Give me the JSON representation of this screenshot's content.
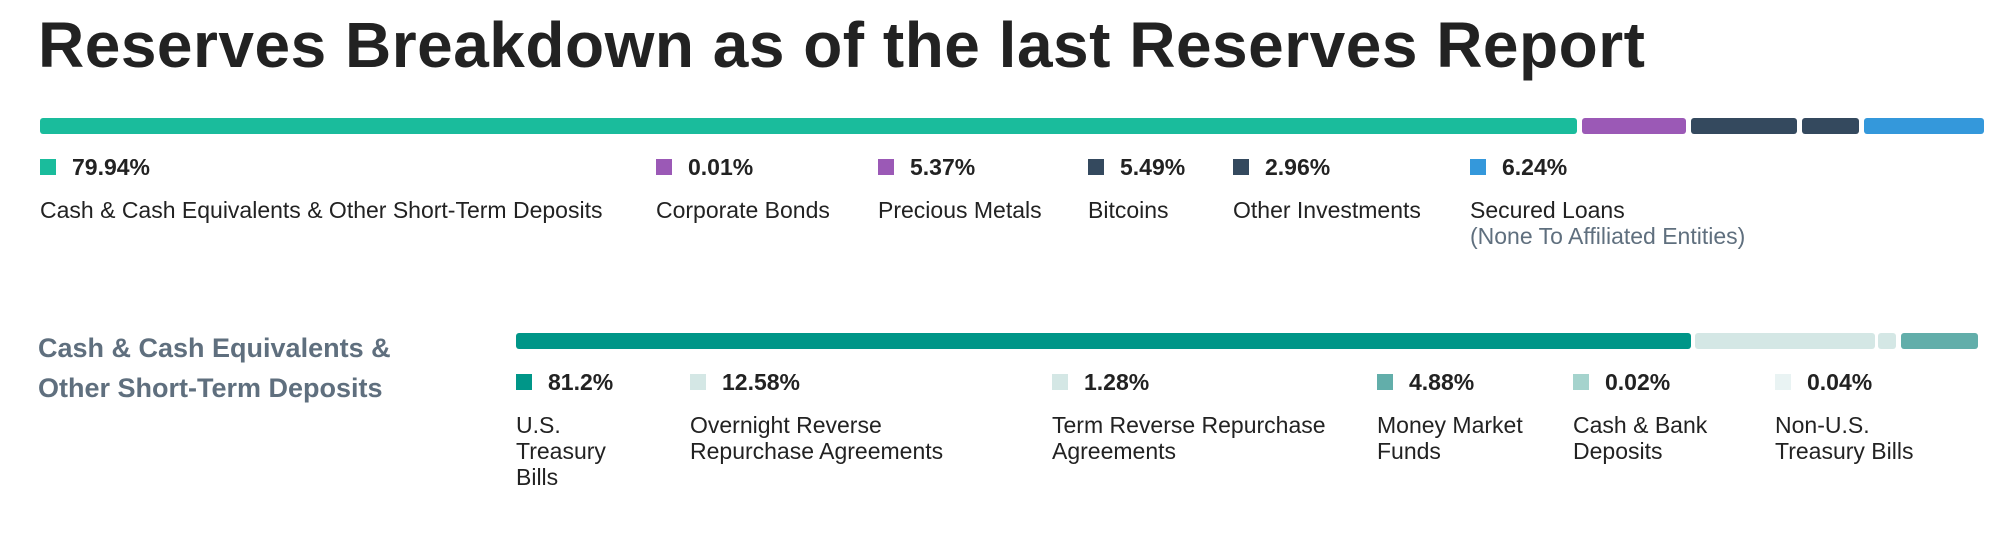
{
  "title": "Reserves Breakdown as of the last Reserves Report",
  "section_title": "Cash & Cash Equivalents & Other Short-Term Deposits",
  "chart_data": [
    {
      "type": "bar",
      "stacked": true,
      "orientation": "horizontal",
      "categories": [
        "Cash & Cash Equivalents & Other Short-Term Deposits",
        "Corporate Bonds",
        "Precious Metals",
        "Bitcoins",
        "Other Investments",
        "Secured Loans"
      ],
      "values": [
        79.94,
        0.01,
        5.37,
        5.49,
        2.96,
        6.24
      ],
      "value_labels": [
        "79.94%",
        "0.01%",
        "5.37%",
        "5.49%",
        "2.96%",
        "6.24%"
      ],
      "sublabels": [
        "",
        "",
        "",
        "",
        "",
        "(None To Affiliated Entities)"
      ],
      "colors": [
        "#1abc9c",
        "#9b59b6",
        "#9b59b6",
        "#34495e",
        "#34495e",
        "#3498db"
      ]
    },
    {
      "type": "bar",
      "stacked": true,
      "orientation": "horizontal",
      "title": "Cash & Cash Equivalents & Other Short-Term Deposits",
      "categories": [
        "U.S. Treasury Bills",
        "Overnight Reverse Repurchase Agreements",
        "Term Reverse Repurchase Agreements",
        "Money Market Funds",
        "Cash & Bank Deposits",
        "Non-U.S. Treasury Bills"
      ],
      "values": [
        81.2,
        12.58,
        1.28,
        4.88,
        0.02,
        0.04
      ],
      "value_labels": [
        "81.2%",
        "12.58%",
        "1.28%",
        "4.88%",
        "0.02%",
        "0.04%"
      ],
      "colors": [
        "#009688",
        "#d4e7e5",
        "#d4e7e5",
        "#62aeaa",
        "#a5d3cd",
        "#e9f3f3"
      ]
    }
  ]
}
